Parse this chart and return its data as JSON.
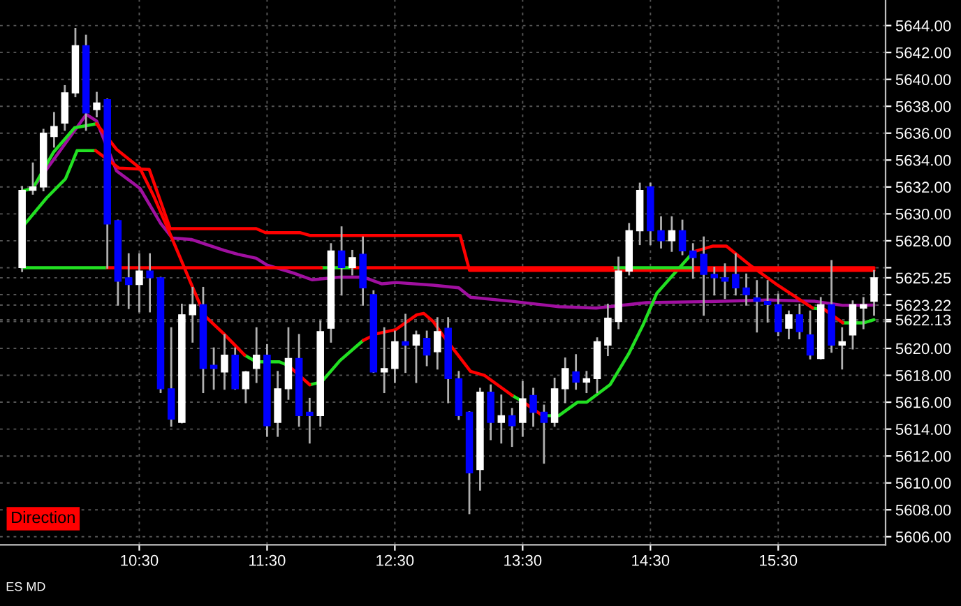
{
  "chart_data": {
    "type": "candlestick",
    "x": [
      9.583,
      9.667,
      9.75,
      9.833,
      9.917,
      10,
      10.083,
      10.167,
      10.25,
      10.333,
      10.417,
      10.5,
      10.583,
      10.667,
      10.75,
      10.833,
      10.917,
      11,
      11.083,
      11.167,
      11.25,
      11.333,
      11.417,
      11.5,
      11.583,
      11.667,
      11.75,
      11.833,
      11.917,
      12,
      12.083,
      12.167,
      12.25,
      12.333,
      12.417,
      12.5,
      12.583,
      12.667,
      12.75,
      12.833,
      12.917,
      13,
      13.083,
      13.167,
      13.25,
      13.333,
      13.417,
      13.5,
      13.583,
      13.667,
      13.75,
      13.833,
      13.917,
      14,
      14.083,
      14.167,
      14.25,
      14.333,
      14.417,
      14.5,
      14.583,
      14.667,
      14.75,
      14.833,
      14.917,
      15,
      15.083,
      15.167,
      15.25,
      15.333,
      15.417,
      15.5,
      15.583,
      15.667,
      15.75,
      15.833,
      15.917,
      16,
      16.083,
      16.167,
      16.25
    ],
    "ohlc": [
      [
        5626,
        5632,
        5625.75,
        5631.75
      ],
      [
        5631.75,
        5633.75,
        5631.5,
        5632
      ],
      [
        5632,
        5636.25,
        5631.75,
        5636
      ],
      [
        5635.75,
        5637.5,
        5635,
        5636.5
      ],
      [
        5636.75,
        5639.5,
        5636.25,
        5639
      ],
      [
        5639,
        5643.75,
        5638.75,
        5642.5
      ],
      [
        5642.5,
        5643.25,
        5636.25,
        5637.5
      ],
      [
        5637.75,
        5639,
        5637.25,
        5638.25
      ],
      [
        5638.5,
        5638.5,
        5626,
        5629.25
      ],
      [
        5629.5,
        5629.5,
        5623.25,
        5625
      ],
      [
        5625.25,
        5627,
        5623,
        5624.75
      ],
      [
        5624.75,
        5627,
        5622.75,
        5625.75
      ],
      [
        5625.75,
        5627,
        5622.75,
        5625.25
      ],
      [
        5625.25,
        5625.25,
        5616.75,
        5617
      ],
      [
        5617,
        5621.5,
        5614.25,
        5614.75
      ],
      [
        5614.5,
        5623.25,
        5614.5,
        5622.5
      ],
      [
        5622.5,
        5624.5,
        5620.5,
        5623.25
      ],
      [
        5623.25,
        5624.5,
        5616.75,
        5618.5
      ],
      [
        5618.75,
        5620,
        5617,
        5618.5
      ],
      [
        5618.25,
        5621,
        5617,
        5619.5
      ],
      [
        5619.5,
        5620,
        5617,
        5617
      ],
      [
        5617,
        5618.25,
        5616,
        5618.25
      ],
      [
        5618.5,
        5621.5,
        5617.5,
        5619.5
      ],
      [
        5619.5,
        5620.25,
        5613.5,
        5614.25
      ],
      [
        5614.5,
        5618.25,
        5613.5,
        5617
      ],
      [
        5617,
        5621.5,
        5616.25,
        5619.25
      ],
      [
        5619.25,
        5621,
        5614.25,
        5615
      ],
      [
        5615.25,
        5616.25,
        5613,
        5615
      ],
      [
        5615,
        5622,
        5614.25,
        5621.25
      ],
      [
        5621.5,
        5627.75,
        5620.5,
        5627.25
      ],
      [
        5627.25,
        5629,
        5624,
        5626
      ],
      [
        5626,
        5627.25,
        5625.5,
        5626.75
      ],
      [
        5627,
        5628.25,
        5623.25,
        5624.5
      ],
      [
        5624,
        5624.25,
        5618.25,
        5618.25
      ],
      [
        5618.25,
        5621.5,
        5616.75,
        5618.5
      ],
      [
        5618.5,
        5621.25,
        5617.5,
        5620.5
      ],
      [
        5620.5,
        5622.5,
        5618.25,
        5620.25
      ],
      [
        5620.25,
        5621.25,
        5617.5,
        5621
      ],
      [
        5620.75,
        5621.25,
        5618.75,
        5619.5
      ],
      [
        5619.75,
        5622.25,
        5618.5,
        5621.25
      ],
      [
        5621.5,
        5622.25,
        5616,
        5617.75
      ],
      [
        5617.75,
        5618.25,
        5614.75,
        5615
      ],
      [
        5615.25,
        5615.25,
        5607.75,
        5610.75
      ],
      [
        5611,
        5617,
        5609.5,
        5616.75
      ],
      [
        5616.75,
        5617.25,
        5613.25,
        5614.5
      ],
      [
        5614.5,
        5616.5,
        5613,
        5615
      ],
      [
        5615,
        5615.5,
        5612.75,
        5614.25
      ],
      [
        5614.5,
        5617.5,
        5613.5,
        5616.25
      ],
      [
        5616.5,
        5617,
        5614.25,
        5615.25
      ],
      [
        5615.25,
        5615.75,
        5611.5,
        5614.5
      ],
      [
        5614.5,
        5617.75,
        5614.25,
        5617
      ],
      [
        5617,
        5619.25,
        5616,
        5618.5
      ],
      [
        5618.25,
        5619.5,
        5617,
        5617.5
      ],
      [
        5617.5,
        5618.25,
        5616.75,
        5617.75
      ],
      [
        5617.75,
        5620.75,
        5616.75,
        5620.5
      ],
      [
        5620.25,
        5623.25,
        5619.5,
        5622.25
      ],
      [
        5622,
        5626.75,
        5621.5,
        5625.75
      ],
      [
        5625.75,
        5629.25,
        5625.5,
        5628.75
      ],
      [
        5628.75,
        5632.25,
        5627.75,
        5631.75
      ],
      [
        5632,
        5632.25,
        5627.75,
        5628.75
      ],
      [
        5628.75,
        5629.75,
        5627.5,
        5628
      ],
      [
        5628,
        5629.75,
        5627.25,
        5628.75
      ],
      [
        5628.75,
        5629.5,
        5627,
        5627.25
      ],
      [
        5627.25,
        5627.75,
        5625.25,
        5626.75
      ],
      [
        5627,
        5628.25,
        5622.5,
        5625.5
      ],
      [
        5625.5,
        5626,
        5624,
        5625.25
      ],
      [
        5625.25,
        5626.25,
        5623.75,
        5625
      ],
      [
        5625.5,
        5627,
        5624,
        5624.5
      ],
      [
        5624.5,
        5625.5,
        5623.25,
        5624
      ],
      [
        5623.75,
        5625,
        5621.25,
        5623.5
      ],
      [
        5623.5,
        5625,
        5622,
        5623.25
      ],
      [
        5623.25,
        5624,
        5621,
        5621.25
      ],
      [
        5621.5,
        5622.75,
        5620.75,
        5622.5
      ],
      [
        5622.5,
        5623.25,
        5620.75,
        5621.25
      ],
      [
        5621,
        5622.75,
        5619.25,
        5619.5
      ],
      [
        5619.25,
        5623.75,
        5619.25,
        5623.25
      ],
      [
        5623.25,
        5626.5,
        5619.75,
        5620.25
      ],
      [
        5620.25,
        5621.5,
        5618.5,
        5620.5
      ],
      [
        5621,
        5623.5,
        5620,
        5623.25
      ],
      [
        5623,
        5623.75,
        5621.5,
        5623.25
      ],
      [
        5623.5,
        5625.75,
        5622.5,
        5625.25
      ]
    ],
    "colors": [
      "#ffffff",
      "#ffffff",
      "#ffffff",
      "#ffffff",
      "#ffffff",
      "#ffffff",
      "#0000ff",
      "#ffffff",
      "#0000ff",
      "#0000ff",
      "#0000ff",
      "#ffffff",
      "#0000ff",
      "#0000ff",
      "#0000ff",
      "#ffffff",
      "#ffffff",
      "#0000ff",
      "#0000ff",
      "#ffffff",
      "#0000ff",
      "#ffffff",
      "#ffffff",
      "#0000ff",
      "#ffffff",
      "#ffffff",
      "#0000ff",
      "#0000ff",
      "#ffffff",
      "#ffffff",
      "#0000ff",
      "#ffffff",
      "#0000ff",
      "#0000ff",
      "#ffffff",
      "#ffffff",
      "#0000ff",
      "#ffffff",
      "#0000ff",
      "#ffffff",
      "#0000ff",
      "#0000ff",
      "#0000ff",
      "#ffffff",
      "#0000ff",
      "#ffffff",
      "#0000ff",
      "#ffffff",
      "#0000ff",
      "#0000ff",
      "#ffffff",
      "#ffffff",
      "#0000ff",
      "#ffffff",
      "#ffffff",
      "#ffffff",
      "#ffffff",
      "#ffffff",
      "#ffffff",
      "#0000ff",
      "#0000ff",
      "#ffffff",
      "#0000ff",
      "#0000ff",
      "#0000ff",
      "#0000ff",
      "#0000ff",
      "#0000ff",
      "#0000ff",
      "#0000ff",
      "#0000ff",
      "#0000ff",
      "#ffffff",
      "#0000ff",
      "#0000ff",
      "#ffffff",
      "#0000ff",
      "#ffffff",
      "#ffffff",
      "#ffffff",
      "#ffffff"
    ],
    "series": [
      {
        "type": "line",
        "color": "#a010a0",
        "x": [
          9.667,
          10.086,
          10.166,
          10.322,
          10.505,
          10.667,
          10.759,
          10.906,
          11.16,
          11.27,
          11.415,
          11.499,
          11.707,
          11.852,
          12.071,
          12.253,
          12.399,
          12.508,
          12.8,
          13,
          13.092,
          13.419,
          13.783,
          14.075,
          14.468,
          15.059,
          15.423,
          15.787,
          16.005,
          16.25
        ],
        "values": [
          5631.9,
          5637.4,
          5636.9,
          5633.2,
          5631.9,
          5629.3,
          5628.2,
          5628.1,
          5627.3,
          5627,
          5626.7,
          5626.2,
          5625.6,
          5625.1,
          5625.3,
          5625.3,
          5624.8,
          5624.9,
          5624.7,
          5624.5,
          5623.8,
          5623.5,
          5623.1,
          5623,
          5623.4,
          5623.5,
          5623.6,
          5623.5,
          5623.2,
          5623.22
        ]
      },
      {
        "type": "line",
        "color": "#22e022",
        "x": [
          9.583,
          9.667,
          9.83,
          9.994,
          10.166,
          null,
          11.324,
          11.415,
          11.597,
          11.67,
          null,
          11.834,
          11.925,
          12.071,
          12.253,
          null,
          13.419,
          13.492,
          null,
          13.656,
          13.783,
          13.929,
          14.002,
          14.184,
          14.33,
          14.44,
          14.55,
          14.84,
          null,
          15.769,
          15.86,
          null,
          16.005,
          16.17,
          16.25
        ],
        "values": [
          5631.7,
          5631.9,
          5634.6,
          5636.4,
          5636.7,
          null,
          5619.5,
          5619,
          5619,
          5618.7,
          null,
          5617.3,
          5617.5,
          5619.1,
          5620.6,
          null,
          5616.5,
          5616.1,
          null,
          5615,
          5615,
          5616,
          5616,
          5617.3,
          5619.6,
          5621.7,
          5624.1,
          5627.2,
          null,
          5623,
          5622.9,
          null,
          5621.9,
          5621.9,
          5622.13
        ]
      },
      {
        "type": "line",
        "color": "#ff0000",
        "x": [
          10.166,
          10.322,
          10.505,
          10.614,
          10.724,
          10.906,
          11.015,
          11.16,
          11.324,
          null,
          11.67,
          11.834,
          null,
          12.253,
          12.362,
          12.508,
          12.672,
          12.726,
          12.8,
          12.873,
          13.092,
          13.2,
          13.419,
          null,
          13.492,
          13.656,
          null,
          14.84,
          14.985,
          15.094,
          15.277,
          15.496,
          15.641,
          15.769,
          null,
          15.86,
          16.005
        ],
        "values": [
          5636.7,
          5634.8,
          5633.4,
          5631.3,
          5628.9,
          5624.8,
          5622.4,
          5621.1,
          5619.5,
          null,
          5618.7,
          5617.3,
          null,
          5620.6,
          5621.1,
          5621.4,
          5622.5,
          5622.6,
          5622,
          5621,
          5618.3,
          5618,
          5616.5,
          null,
          5616.1,
          5615,
          null,
          5627.2,
          5627.6,
          5627.6,
          5626.2,
          5624.7,
          5623.8,
          5623,
          null,
          5622.9,
          5621.9
        ]
      },
      {
        "type": "line",
        "color": "#22e022",
        "x": [
          9.583,
          9.776,
          9.922,
          10.013,
          10.158
        ],
        "values": [
          5629,
          5631.2,
          5632.6,
          5634.7,
          5634.7
        ]
      },
      {
        "type": "line",
        "color": "#ff0000",
        "x": [
          10.158,
          10.286,
          10.34,
          10.578,
          10.742,
          11.415,
          11.488,
          11.761,
          11.834,
          13.011,
          13.084,
          16.25
        ],
        "values": [
          5634.7,
          5633.8,
          5633.4,
          5633.3,
          5628.9,
          5628.9,
          5628.6,
          5628.6,
          5628.4,
          5628.4,
          5625.8,
          5625.8
        ]
      },
      {
        "type": "line",
        "color": "#22e022",
        "x": [
          9.583,
          10.25,
          null,
          11.925,
          12.162,
          null,
          14.202,
          14.84
        ],
        "values": [
          5626,
          5626,
          null,
          5626,
          5626,
          null,
          5626,
          5626
        ]
      },
      {
        "type": "line",
        "color": "#ff0000",
        "x": [
          10.25,
          11.925,
          null,
          12.162,
          14.202,
          null,
          14.84,
          16.25
        ],
        "values": [
          5626,
          5626,
          null,
          5626,
          5626,
          null,
          5626,
          5626
        ]
      }
    ],
    "xlim": [
      9.41,
      16.34
    ],
    "xticks": [
      {
        "value": 10.5,
        "label": "10:30"
      },
      {
        "value": 11.5,
        "label": "11:30"
      },
      {
        "value": 12.5,
        "label": "12:30"
      },
      {
        "value": 13.5,
        "label": "13:30"
      },
      {
        "value": 14.5,
        "label": "14:30"
      },
      {
        "value": 15.5,
        "label": "15:30"
      }
    ],
    "ylim": [
      5605.4,
      5645.9
    ],
    "yticks": [
      {
        "value": 5606,
        "label": "5606.00"
      },
      {
        "value": 5608,
        "label": "5608.00"
      },
      {
        "value": 5610,
        "label": "5610.00"
      },
      {
        "value": 5612,
        "label": "5612.00"
      },
      {
        "value": 5614,
        "label": "5614.00"
      },
      {
        "value": 5616,
        "label": "5616.00"
      },
      {
        "value": 5618,
        "label": "5618.00"
      },
      {
        "value": 5620,
        "label": "5620.00"
      },
      {
        "value": 5622,
        "label": null
      },
      {
        "value": 5622.13,
        "label": "5622.13"
      },
      {
        "value": 5623.22,
        "label": "5623.22"
      },
      {
        "value": 5624,
        "label": null
      },
      {
        "value": 5625.25,
        "label": "5625.25"
      },
      {
        "value": 5626,
        "label": null
      },
      {
        "value": 5628,
        "label": "5628.00"
      },
      {
        "value": 5630,
        "label": "5630.00"
      },
      {
        "value": 5632,
        "label": "5632.00"
      },
      {
        "value": 5634,
        "label": "5634.00"
      },
      {
        "value": 5636,
        "label": "5636.00"
      },
      {
        "value": 5638,
        "label": "5638.00"
      },
      {
        "value": 5640,
        "label": "5640.00"
      },
      {
        "value": 5642,
        "label": "5642.00"
      },
      {
        "value": 5644,
        "label": "5644.00"
      }
    ],
    "grid": true,
    "annotations": [
      "Direction",
      "ES MD"
    ]
  }
}
